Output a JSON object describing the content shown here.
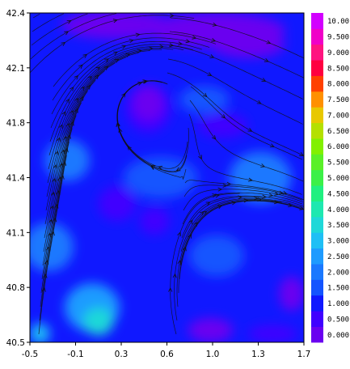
{
  "chart_data": {
    "type": "heatmap",
    "title": "",
    "xlabel": "",
    "ylabel": "",
    "xlim": [
      -0.5,
      1.7
    ],
    "ylim": [
      40.5,
      42.4
    ],
    "x_ticks": [
      "-0.5",
      "-0.1",
      "0.3",
      "0.6",
      "1.0",
      "1.3",
      "1.7"
    ],
    "y_ticks": [
      "40.5",
      "40.8",
      "41.1",
      "41.4",
      "41.8",
      "42.1",
      "42.4"
    ],
    "overlay": "streamlines",
    "colorbar": {
      "levels": [
        "0.000",
        "0.500",
        "1.000",
        "1.500",
        "2.000",
        "2.500",
        "3.000",
        "3.500",
        "4.000",
        "4.500",
        "5.000",
        "5.500",
        "6.000",
        "6.500",
        "7.000",
        "7.500",
        "8.000",
        "8.500",
        "9.000",
        "9.500",
        "10.00"
      ],
      "colors": [
        "#6a00f0",
        "#4000ff",
        "#1018ff",
        "#1454ff",
        "#1a78ff",
        "#1e9bff",
        "#1fbff5",
        "#1fd8d8",
        "#1ee8b0",
        "#20f080",
        "#3cf048",
        "#5af028",
        "#82f000",
        "#b4e000",
        "#e8c800",
        "#ff9000",
        "#ff4000",
        "#ff0040",
        "#ff1480",
        "#f000c8",
        "#d200ff"
      ]
    },
    "field_blobs": [
      {
        "x": -0.35,
        "y": 41.05,
        "rx": 0.2,
        "ry": 0.14,
        "value": 2.4
      },
      {
        "x": 0.0,
        "y": 40.7,
        "rx": 0.22,
        "ry": 0.14,
        "value": 2.9
      },
      {
        "x": 0.05,
        "y": 40.62,
        "rx": 0.12,
        "ry": 0.08,
        "value": 3.6
      },
      {
        "x": -0.42,
        "y": 40.55,
        "rx": 0.08,
        "ry": 0.06,
        "value": 3.4
      },
      {
        "x": -0.2,
        "y": 41.55,
        "rx": 0.18,
        "ry": 0.12,
        "value": 2.0
      },
      {
        "x": 0.55,
        "y": 41.45,
        "rx": 0.3,
        "ry": 0.12,
        "value": 1.8
      },
      {
        "x": 1.35,
        "y": 41.45,
        "rx": 0.25,
        "ry": 0.15,
        "value": 2.1
      },
      {
        "x": 1.0,
        "y": 41.0,
        "rx": 0.22,
        "ry": 0.12,
        "value": 1.9
      },
      {
        "x": 0.9,
        "y": 41.9,
        "rx": 0.2,
        "ry": 0.08,
        "value": 1.8
      },
      {
        "x": 0.5,
        "y": 41.2,
        "rx": 0.12,
        "ry": 0.08,
        "value": 0.9
      },
      {
        "x": 0.2,
        "y": 41.3,
        "rx": 0.15,
        "ry": 0.1,
        "value": 0.9
      },
      {
        "x": 1.05,
        "y": 41.75,
        "rx": 0.2,
        "ry": 0.07,
        "value": 0.8
      },
      {
        "x": 0.45,
        "y": 41.85,
        "rx": 0.18,
        "ry": 0.14,
        "value": 0.5
      },
      {
        "x": 0.45,
        "y": 41.88,
        "rx": 0.12,
        "ry": 0.1,
        "value": 0.2
      },
      {
        "x": 0.2,
        "y": 42.33,
        "rx": 0.45,
        "ry": 0.08,
        "value": 0.2
      },
      {
        "x": 1.0,
        "y": 42.3,
        "rx": 0.55,
        "ry": 0.1,
        "value": 0.3
      },
      {
        "x": 1.25,
        "y": 42.22,
        "rx": 0.3,
        "ry": 0.08,
        "value": 0.2
      },
      {
        "x": 1.6,
        "y": 40.78,
        "rx": 0.1,
        "ry": 0.1,
        "value": 0.3
      },
      {
        "x": 0.95,
        "y": 40.57,
        "rx": 0.18,
        "ry": 0.07,
        "value": 0.3
      },
      {
        "x": 1.45,
        "y": 40.55,
        "rx": 0.2,
        "ry": 0.05,
        "value": 0.8
      }
    ],
    "vortices": [
      {
        "x": 1.6,
        "y": 40.78,
        "direction": "counterclockwise"
      },
      {
        "x": 0.45,
        "y": 41.85,
        "direction": "counterclockwise"
      }
    ],
    "flow_direction": "west-to-east"
  }
}
